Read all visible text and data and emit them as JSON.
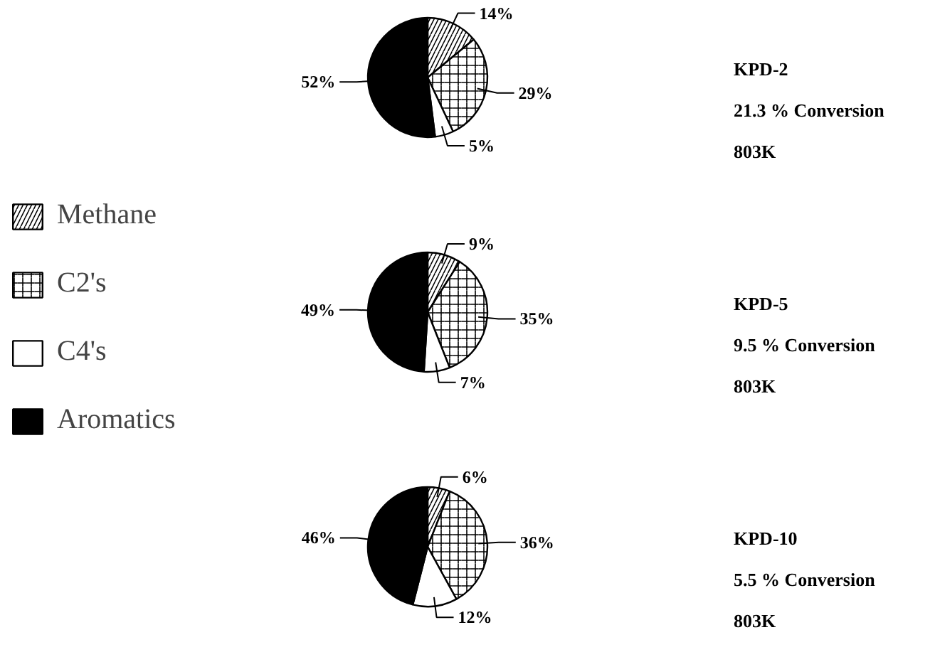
{
  "chart_data": [
    {
      "type": "pie",
      "title": "KPD-2",
      "subtitle": "21.3 % Conversion",
      "annotations": [
        "803K"
      ],
      "categories": [
        "Methane",
        "C2's",
        "C4's",
        "Aromatics"
      ],
      "values": [
        14,
        29,
        5,
        52
      ],
      "value_labels": [
        "14%",
        "29%",
        "5%",
        "52%"
      ],
      "colors": [
        "#ffffff",
        "#ffffff",
        "#ffffff",
        "#000000"
      ],
      "legend": "left"
    },
    {
      "type": "pie",
      "title": "KPD-5",
      "subtitle": "9.5 % Conversion",
      "annotations": [
        "803K"
      ],
      "categories": [
        null,
        null,
        null,
        null
      ],
      "values": [
        9,
        35,
        7,
        49
      ],
      "value_labels": [
        "9%",
        "35%",
        "7%",
        "49%"
      ],
      "colors": [
        "#ffffff",
        "#ffffff",
        "#ffffff",
        "#000000"
      ]
    },
    {
      "type": "pie",
      "title": "KPD-10",
      "subtitle": "5.5 % Conversion",
      "annotations": [
        "803K"
      ],
      "categories": [
        null,
        null,
        null,
        null
      ],
      "values": [
        6,
        36,
        12,
        46
      ],
      "value_labels": [
        "6%",
        "36%",
        "12%",
        "46%"
      ],
      "colors": [
        "#ffffff",
        "#ffffff",
        "#ffffff",
        "#000000"
      ]
    }
  ]
}
